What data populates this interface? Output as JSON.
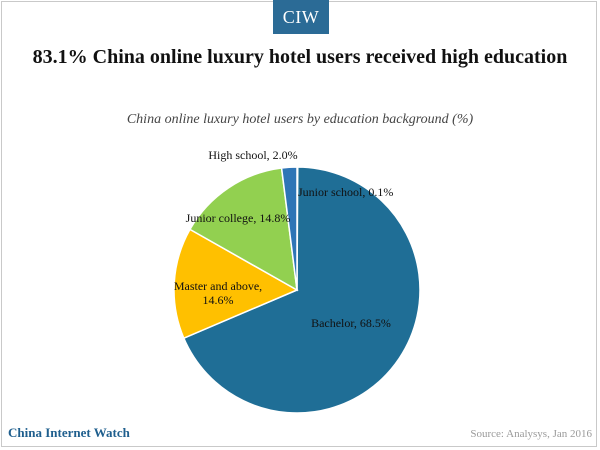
{
  "brand_badge": "CIW",
  "footer": {
    "brand": "China Internet Watch",
    "source": "Source: Analysys, Jan 2016"
  },
  "chart_data": {
    "type": "pie",
    "title": "83.1% China online luxury hotel users received high education",
    "subtitle": "China online luxury hotel users by education background (%)",
    "unit": "%",
    "slices": [
      {
        "label": "Junior school, 0.1%",
        "category": "Junior school",
        "value": 0.1,
        "color": "#215f9a"
      },
      {
        "label": "Bachelor, 68.5%",
        "category": "Bachelor",
        "value": 68.5,
        "color": "#1f6e96"
      },
      {
        "label": "Master and above, 14.6%",
        "category": "Master and above",
        "value": 14.6,
        "color": "#ffc000"
      },
      {
        "label": "Junior college, 14.8%",
        "category": "Junior college",
        "value": 14.8,
        "color": "#92d050"
      },
      {
        "label": "High school, 2.0%",
        "category": "High school",
        "value": 2.0,
        "color": "#2e75b6"
      }
    ]
  }
}
